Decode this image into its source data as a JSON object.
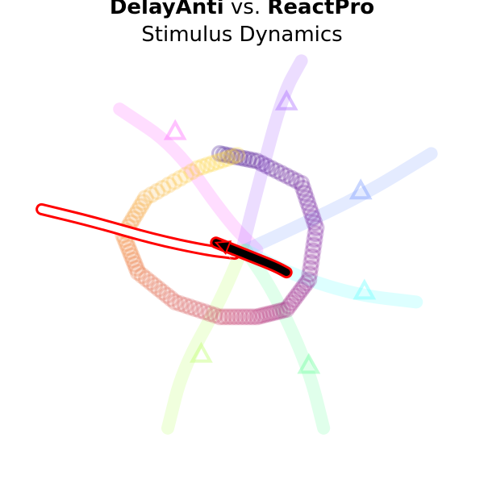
{
  "title": {
    "part_a": "DelayAnti",
    "connector": " vs. ",
    "part_b": "ReactPro"
  },
  "subtitle": "Stimulus Dynamics",
  "chart_data": {
    "type": "line",
    "axes_visible": false,
    "grid": false,
    "legend": "none",
    "stimulus_arms": [
      {
        "color": "#ff66ff",
        "opacity": 0.22,
        "x": [
          -1.65,
          -0.9,
          -0.2,
          0.2
        ],
        "y": [
          1.9,
          1.4,
          0.4,
          0.0
        ]
      },
      {
        "color": "#a866ff",
        "opacity": 0.22,
        "x": [
          0.8,
          0.55,
          0.2,
          0.0
        ],
        "y": [
          2.55,
          2.1,
          0.8,
          0.0
        ]
      },
      {
        "color": "#7799ff",
        "opacity": 0.2,
        "x": [
          2.55,
          1.65,
          0.6,
          0.05
        ],
        "y": [
          1.3,
          0.75,
          0.25,
          0.0
        ]
      },
      {
        "color": "#66ffff",
        "opacity": 0.22,
        "x": [
          2.35,
          1.5,
          0.6,
          0.05
        ],
        "y": [
          -0.7,
          -0.6,
          -0.3,
          0.0
        ]
      },
      {
        "color": "#66ff99",
        "opacity": 0.2,
        "x": [
          1.1,
          0.9,
          0.45,
          0.05
        ],
        "y": [
          -2.4,
          -1.6,
          -0.6,
          0.0
        ]
      },
      {
        "color": "#bbff66",
        "opacity": 0.22,
        "x": [
          -1.0,
          -0.8,
          -0.3,
          0.0
        ],
        "y": [
          -2.4,
          -1.6,
          -0.7,
          0.0
        ]
      }
    ],
    "arm_markers": [
      {
        "color": "#ff66ff",
        "opacity": 0.4,
        "x": -0.9,
        "y": 1.6
      },
      {
        "color": "#a866ff",
        "opacity": 0.4,
        "x": 0.6,
        "y": 2.0
      },
      {
        "color": "#7799ff",
        "opacity": 0.4,
        "x": 1.6,
        "y": 0.8
      },
      {
        "color": "#66ffff",
        "opacity": 0.4,
        "x": 1.65,
        "y": -0.55
      },
      {
        "color": "#66ff99",
        "opacity": 0.4,
        "x": 0.9,
        "y": -1.55
      },
      {
        "color": "#bbff66",
        "opacity": 0.4,
        "x": -0.55,
        "y": -1.4
      }
    ],
    "ring_trajectory": {
      "colormap": [
        "#3a0a8c",
        "#7e1fa0",
        "#c03a78",
        "#ef7a3a",
        "#ffe040"
      ],
      "opacity": 0.16,
      "t": [
        0,
        0.08,
        0.16,
        0.24,
        0.32,
        0.4,
        0.48,
        0.56,
        0.64,
        0.72,
        0.8,
        0.88,
        0.96,
        1.0
      ],
      "x": [
        -0.3,
        0.2,
        0.8,
        1.0,
        0.9,
        0.6,
        0.2,
        -0.3,
        -0.9,
        -1.4,
        -1.6,
        -1.3,
        -0.6,
        0.0
      ],
      "y": [
        1.3,
        1.2,
        0.9,
        0.3,
        -0.4,
        -0.8,
        -0.9,
        -0.9,
        -0.7,
        -0.3,
        0.2,
        0.7,
        1.1,
        1.3
      ]
    },
    "react_trajectory": {
      "color": "#000000",
      "outline": "#ff0000",
      "x": [
        -0.35,
        -0.1,
        0.15,
        0.45,
        0.6
      ],
      "y": [
        0.1,
        0.0,
        -0.1,
        -0.22,
        -0.3
      ]
    },
    "delay_trajectory": {
      "color": "#ffffff",
      "outline": "#ff0000",
      "x": [
        -2.7,
        -2.0,
        -1.2,
        -0.5,
        -0.1
      ],
      "y": [
        0.55,
        0.38,
        0.15,
        0.0,
        -0.05
      ]
    }
  }
}
